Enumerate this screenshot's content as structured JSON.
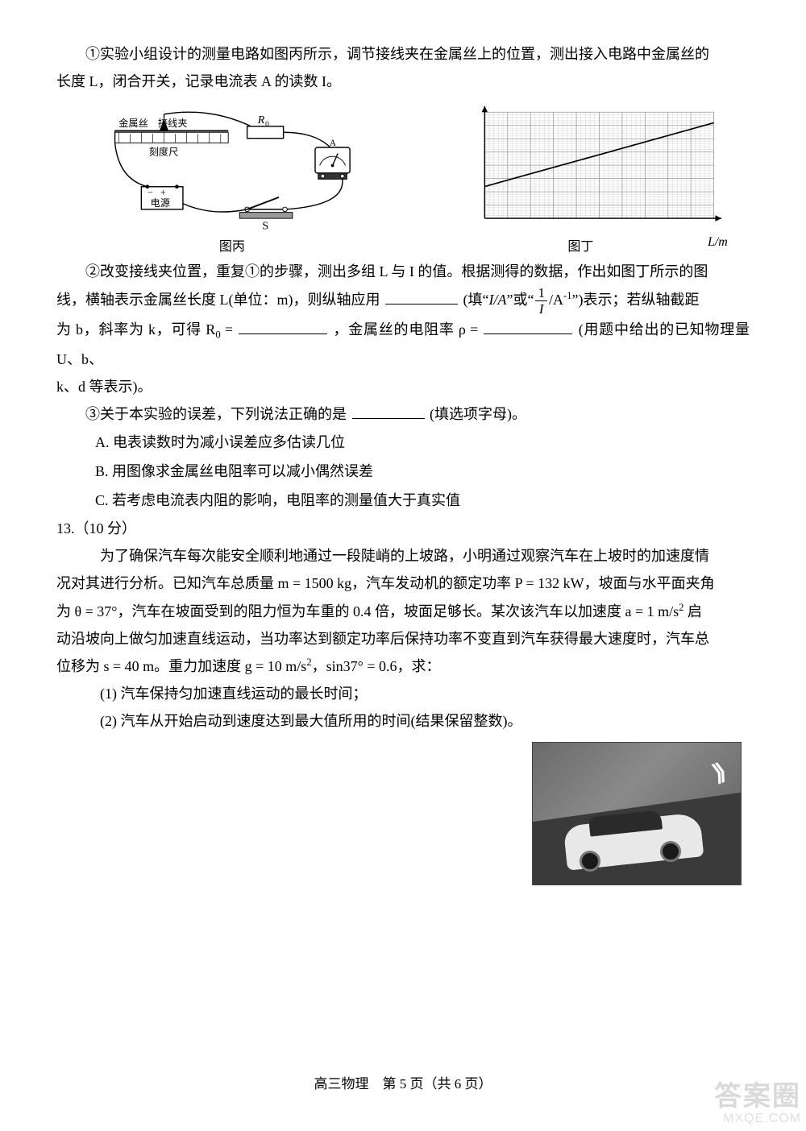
{
  "part1": {
    "line1": "①实验小组设计的测量电路如图丙所示，调节接线夹在金属丝上的位置，测出接入电路中金属丝的",
    "line2": "长度 L，闭合开关，记录电流表 A 的读数 I。"
  },
  "circuit": {
    "labels": {
      "wire": "金属丝",
      "clip": "接线夹",
      "ruler": "刻度尺",
      "battery": "电源",
      "switch": "S",
      "R0": "R",
      "R0sub": "0",
      "ammeter": "A"
    },
    "caption": "图丙",
    "stroke": "#000000",
    "bg": "#ffffff"
  },
  "graph": {
    "xlabel": "L/m",
    "caption": "图丁",
    "xlim": [
      0,
      10
    ],
    "ylim": [
      0,
      8
    ],
    "xtick_step": 1,
    "ytick_step": 1,
    "line": {
      "x1": 0,
      "y1": 2.4,
      "x2": 10,
      "y2": 7.2
    },
    "grid_color": "#9a9a9a",
    "grid_minor_color": "#c7c7c7",
    "axis_color": "#000000",
    "bg": "#ffffff"
  },
  "part2": {
    "lineA": "②改变接线夹位置，重复①的步骤，测出多组 L 与 I 的值。根据测得的数据，作出如图丁所示的图",
    "lineB_pre": "线，横轴表示金属丝长度 L(单位：m)，则纵轴应用",
    "lineB_mid1": "(填“",
    "lineB_IA": "I/A",
    "lineB_mid2": "”或“",
    "lineB_frac_num": "1",
    "lineB_frac_den": "I",
    "lineB_unit": "/A",
    "lineB_sup": "-1",
    "lineB_mid3": "”)表示；若纵轴截距",
    "lineC_pre": "为 b，斜率为 k，可得 R",
    "lineC_r0sub": "0",
    "lineC_eq": " =",
    "lineC_mid": "，金属丝的电阻率 ρ =",
    "lineC_post": "(用题中给出的已知物理量 U、b、",
    "lineD": "k、d 等表示)。"
  },
  "part3": {
    "q": "③关于本实验的误差，下列说法正确的是",
    "post": "(填选项字母)。",
    "A": "A. 电表读数时为减小误差应多估读几位",
    "B": "B. 用图像求金属丝电阻率可以减小偶然误差",
    "C": "C. 若考虑电流表内阻的影响，电阻率的测量值大于真实值"
  },
  "q13": {
    "num": "13.（10 分）",
    "p1a": "为了确保汽车每次能安全顺利地通过一段陡峭的上坡路，小明通过观察汽车在上坡时的加速度情",
    "p1b": "况对其进行分析。已知汽车总质量 m = 1500 kg，汽车发动机的额定功率 P = 132 kW，坡面与水平面夹角",
    "p1c_pre": "为 θ = 37°，汽车在坡面受到的阻力恒为车重的 0.4 倍，坡面足够长。某次该汽车以加速度 a = 1 m/s",
    "p1c_sup": "2",
    "p1c_post": " 启",
    "p1d": "动沿坡向上做匀加速直线运动，当功率达到额定功率后保持功率不变直到汽车获得最大速度时，汽车总",
    "p1e_pre": "位移为 s = 40 m。重力加速度 g = 10 m/s",
    "p1e_sup": "2",
    "p1e_mid": "，sin37° = 0.6，求：",
    "sub1": "(1) 汽车保持匀加速直线运动的最长时间；",
    "sub2": "(2) 汽车从开始启动到速度达到最大值所用的时间(结果保留整数)。"
  },
  "footer": {
    "text": "高三物理　第 5 页（共 6 页）"
  },
  "watermark": {
    "l1": "答案圈",
    "l2": "MXQE.COM"
  }
}
